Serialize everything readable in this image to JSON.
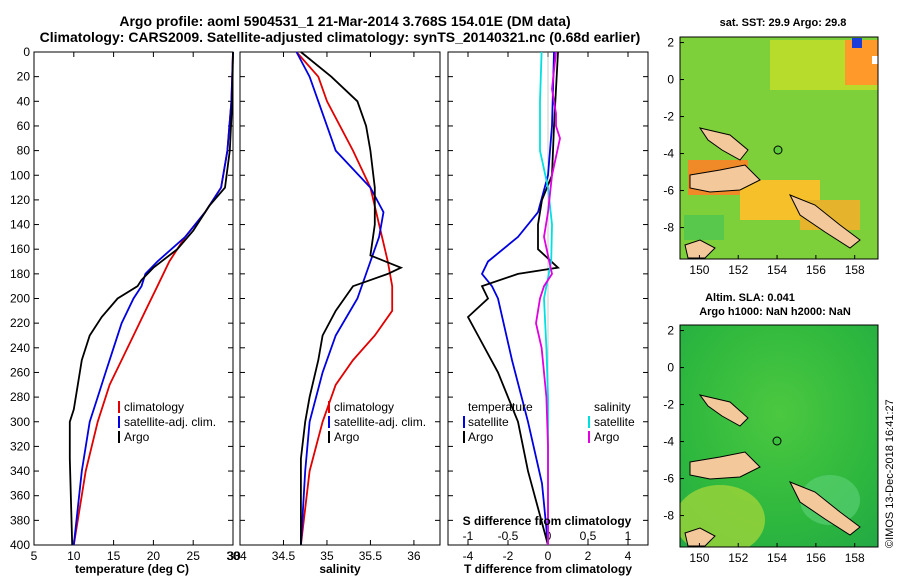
{
  "figure": {
    "title_line1": "Argo profile: aoml 5904531_1 21-Mar-2014 3.768S 154.01E (DM data)",
    "title_line2": "Climatology: CARS2009. Satellite-adjusted climatology: synTS_20140321.nc (0.68d earlier)",
    "timestamp": "©IMOS 13-Dec-2018 16:41:27"
  },
  "colors": {
    "climatology": "#e00000",
    "satellite": "#0000e0",
    "argo": "#000000",
    "sat_salinity": "#00e0e0",
    "argo_salinity": "#e000e0"
  },
  "chart_data": [
    {
      "id": "temperature",
      "type": "line",
      "xlabel": "temperature (deg C)",
      "ylabel": "",
      "xlim": [
        5,
        30
      ],
      "xticks": [
        "5",
        "10",
        "15",
        "20",
        "25",
        "30"
      ],
      "ylim": [
        0,
        400
      ],
      "yticks": [
        "0",
        "20",
        "40",
        "60",
        "80",
        "100",
        "120",
        "140",
        "160",
        "180",
        "200",
        "220",
        "240",
        "260",
        "280",
        "300",
        "320",
        "340",
        "360",
        "380",
        "400"
      ],
      "legend": [
        "climatology",
        "satellite-adj. clim.",
        "Argo"
      ],
      "legend_placement": "lower-right",
      "series": [
        {
          "name": "climatology",
          "color": "climatology",
          "depth": [
            0,
            40,
            80,
            110,
            130,
            150,
            170,
            190,
            210,
            230,
            250,
            270,
            300,
            340,
            400
          ],
          "values": [
            30,
            29.8,
            29.3,
            28.5,
            26.5,
            24,
            22,
            20.5,
            19,
            17.5,
            16,
            14.5,
            13,
            11.5,
            10
          ]
        },
        {
          "name": "satellite-adj. clim.",
          "color": "satellite",
          "depth": [
            0,
            40,
            80,
            110,
            130,
            150,
            170,
            180,
            190,
            200,
            220,
            240,
            260,
            280,
            300,
            340,
            400
          ],
          "values": [
            30,
            29.8,
            29.3,
            28.5,
            26.5,
            24,
            20.5,
            19,
            18.5,
            17.5,
            16,
            15,
            14,
            13,
            12,
            11,
            10
          ]
        },
        {
          "name": "Argo",
          "color": "argo",
          "depth": [
            0,
            40,
            80,
            110,
            125,
            145,
            160,
            175,
            185,
            190,
            200,
            215,
            230,
            250,
            270,
            290,
            300,
            330,
            400
          ],
          "values": [
            30,
            29.9,
            29.6,
            29,
            27,
            25,
            23,
            20,
            18.5,
            18,
            15.5,
            13.5,
            12,
            11,
            10.5,
            10,
            9.5,
            9.5,
            9.8
          ]
        }
      ]
    },
    {
      "id": "salinity",
      "type": "line",
      "xlabel": "salinity",
      "ylabel": "",
      "xlim": [
        34,
        36.3
      ],
      "xticks": [
        "34",
        "34.5",
        "35",
        "35.5",
        "36"
      ],
      "ylim": [
        0,
        400
      ],
      "legend": [
        "climatology",
        "satellite-adj. clim.",
        "Argo"
      ],
      "legend_placement": "lower-right",
      "series": [
        {
          "name": "climatology",
          "color": "climatology",
          "depth": [
            0,
            20,
            40,
            80,
            110,
            140,
            170,
            190,
            210,
            230,
            250,
            270,
            300,
            340,
            400
          ],
          "values": [
            34.65,
            34.9,
            35.0,
            35.3,
            35.5,
            35.6,
            35.7,
            35.75,
            35.75,
            35.55,
            35.3,
            35.1,
            34.95,
            34.8,
            34.7
          ]
        },
        {
          "name": "satellite-adj. clim.",
          "color": "satellite",
          "depth": [
            0,
            20,
            40,
            80,
            110,
            130,
            150,
            170,
            200,
            230,
            260,
            300,
            340,
            400
          ],
          "values": [
            34.65,
            34.8,
            34.9,
            35.1,
            35.5,
            35.65,
            35.6,
            35.5,
            35.35,
            35.1,
            34.95,
            34.8,
            34.75,
            34.7
          ]
        },
        {
          "name": "Argo",
          "color": "argo",
          "depth": [
            0,
            20,
            40,
            60,
            80,
            110,
            140,
            165,
            175,
            180,
            190,
            210,
            230,
            250,
            280,
            300,
            330,
            400
          ],
          "values": [
            34.7,
            35.05,
            35.35,
            35.45,
            35.5,
            35.55,
            35.55,
            35.5,
            35.85,
            35.7,
            35.3,
            35.1,
            34.95,
            34.9,
            34.8,
            34.75,
            34.7,
            34.7
          ]
        }
      ]
    },
    {
      "id": "difference",
      "type": "line",
      "xlabel": "T difference from climatology",
      "xlabel_top": "S difference from climatology",
      "xlim": [
        -5,
        5
      ],
      "xticks": [
        "-4",
        "-2",
        "0",
        "2",
        "4"
      ],
      "xlim_top": [
        -1.25,
        1.25
      ],
      "xticks_top": [
        "-1",
        "-0.5",
        "0",
        "0.5",
        "1"
      ],
      "ylim": [
        0,
        400
      ],
      "legend_left_title": "temperature",
      "legend_left": [
        "satellite",
        "Argo"
      ],
      "legend_right_title": "salinity",
      "legend_right": [
        "satellite",
        "Argo"
      ],
      "series": [
        {
          "name": "T satellite",
          "color": "satellite",
          "depth": [
            0,
            60,
            100,
            130,
            150,
            170,
            180,
            190,
            200,
            250,
            300,
            350,
            400
          ],
          "values": [
            0.3,
            0.2,
            0,
            -0.5,
            -1.5,
            -3,
            -3.3,
            -2.8,
            -2.5,
            -1.8,
            -1,
            -0.3,
            0
          ]
        },
        {
          "name": "T Argo",
          "color": "argo",
          "depth": [
            0,
            60,
            100,
            120,
            140,
            160,
            175,
            180,
            190,
            200,
            215,
            230,
            260,
            300,
            340,
            400
          ],
          "values": [
            0.5,
            0.3,
            0.2,
            -0.3,
            -0.5,
            -0.5,
            0.5,
            -1.5,
            -3.3,
            -3,
            -4,
            -3.5,
            -2.5,
            -1.5,
            -1,
            0
          ]
        },
        {
          "name": "S satellite",
          "color": "sat_salinity",
          "depth": [
            0,
            40,
            80,
            110,
            140,
            170,
            200,
            240,
            280,
            320,
            360,
            400
          ],
          "values": [
            -0.08,
            -0.1,
            -0.1,
            0,
            0.05,
            0.04,
            -0.05,
            -0.02,
            0,
            0,
            0,
            0
          ]
        },
        {
          "name": "S Argo",
          "color": "argo_salinity",
          "depth": [
            0,
            30,
            50,
            60,
            70,
            100,
            130,
            150,
            180,
            190,
            200,
            220,
            240,
            280,
            320,
            400
          ],
          "values": [
            0.1,
            0.05,
            0.1,
            0.1,
            0.15,
            0.05,
            0,
            -0.05,
            0.05,
            -0.05,
            -0.1,
            -0.15,
            -0.08,
            -0.02,
            0,
            0
          ]
        }
      ]
    }
  ],
  "maps": [
    {
      "id": "sst-map",
      "title": "sat. SST: 29.9 Argo: 29.8",
      "xticks": [
        "150",
        "152",
        "154",
        "156",
        "158"
      ],
      "yticks": [
        "2",
        "0",
        "-2",
        "-4",
        "-6",
        "-8"
      ]
    },
    {
      "id": "sla-map",
      "title_line1": "Altim. SLA: 0.041",
      "title_line2": "Argo h1000: NaN h2000: NaN",
      "xticks": [
        "150",
        "152",
        "154",
        "156",
        "158"
      ],
      "yticks": [
        "2",
        "0",
        "-2",
        "-4",
        "-6",
        "-8"
      ]
    }
  ]
}
